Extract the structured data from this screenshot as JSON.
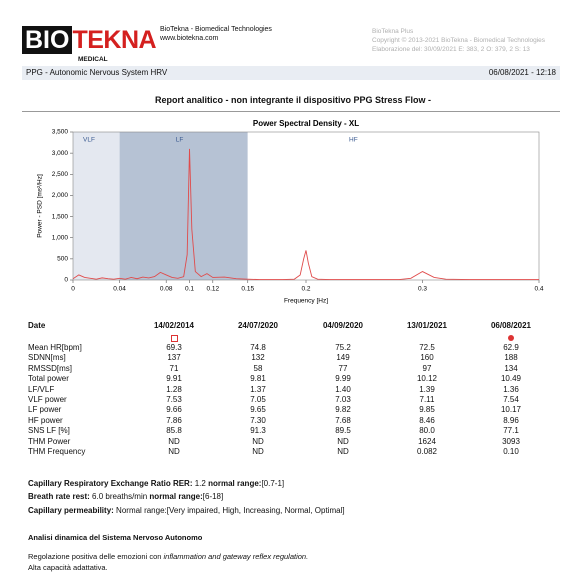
{
  "header": {
    "logo_left": "BIO",
    "logo_right": "TEKNA",
    "logo_sub": "MEDICAL",
    "company": "BioTekna - Biomedical Technologies",
    "website": "www.biotekna.com",
    "product": "BioTekna Plus",
    "copyright": "Copyright © 2013-2021 BioTekna - Biomedical Technologies",
    "elaboration": "Elaborazione del: 30/09/2021 E: 383, 2 O: 379, 2 S: 13"
  },
  "bar": {
    "left": "PPG - Autonomic Nervous System HRV",
    "right": "06/08/2021 - 12:18"
  },
  "report_title": "Report analitico - non integrante il dispositivo PPG Stress Flow -",
  "chart": {
    "type": "line",
    "title": "Power Spectral Density - XL",
    "x_label": "Frequency [Hz]",
    "y_label": "Power - PSD [ms²/Hz]",
    "color": "#e04b4b",
    "bands": [
      {
        "name": "VLF",
        "range": [
          0,
          0.04
        ],
        "color": "#e4e8f0"
      },
      {
        "name": "LF",
        "range": [
          0.04,
          0.15
        ],
        "color": "#b6c2d4"
      },
      {
        "name": "HF",
        "range": [
          0.15,
          0.4
        ],
        "color": "#ffffff"
      }
    ],
    "xlim": [
      0,
      0.4
    ],
    "ylim": [
      0,
      3500
    ],
    "xticks": [
      0,
      0.04,
      0.08,
      0.1,
      0.12,
      0.15,
      0.2,
      0.3,
      0.4
    ],
    "yticks": [
      0,
      500,
      {
        "value": 1000,
        "label": "1,000"
      },
      {
        "value": 1500,
        "label": "1,500"
      },
      {
        "value": 2000,
        "label": "2,000"
      },
      {
        "value": 2500,
        "label": "2,500"
      },
      {
        "value": 3000,
        "label": "3,000"
      },
      {
        "value": 3500,
        "label": "3,500"
      }
    ],
    "x": [
      0,
      0.005,
      0.01,
      0.015,
      0.02,
      0.025,
      0.03,
      0.035,
      0.04,
      0.045,
      0.05,
      0.055,
      0.06,
      0.065,
      0.07,
      0.075,
      0.08,
      0.085,
      0.09,
      0.095,
      0.098,
      0.1,
      0.102,
      0.105,
      0.11,
      0.115,
      0.12,
      0.13,
      0.14,
      0.15,
      0.16,
      0.17,
      0.18,
      0.19,
      0.195,
      0.198,
      0.2,
      0.202,
      0.205,
      0.21,
      0.22,
      0.24,
      0.26,
      0.28,
      0.29,
      0.3,
      0.31,
      0.32,
      0.34,
      0.36,
      0.38,
      0.4
    ],
    "values": [
      30,
      120,
      60,
      40,
      20,
      50,
      30,
      20,
      40,
      20,
      60,
      30,
      70,
      50,
      80,
      180,
      120,
      60,
      40,
      80,
      600,
      3100,
      1200,
      200,
      80,
      150,
      60,
      70,
      30,
      20,
      10,
      10,
      10,
      20,
      120,
      500,
      700,
      400,
      80,
      20,
      10,
      10,
      10,
      10,
      40,
      200,
      60,
      20,
      10,
      10,
      10,
      10
    ]
  },
  "table": {
    "header": [
      "Date",
      "14/02/2014",
      "24/07/2020",
      "04/09/2020",
      "13/01/2021",
      "06/08/2021"
    ],
    "rows": [
      [
        "Mean HR[bpm]",
        "69.3",
        "74.8",
        "75.2",
        "72.5",
        "62.9"
      ],
      [
        "SDNN[ms]",
        "137",
        "132",
        "149",
        "160",
        "188"
      ],
      [
        "RMSSD[ms]",
        "71",
        "58",
        "77",
        "97",
        "134"
      ],
      [
        "Total power",
        "9.91",
        "9.81",
        "9.99",
        "10.12",
        "10.49"
      ],
      [
        "LF/VLF",
        "1.28",
        "1.37",
        "1.40",
        "1.39",
        "1.36"
      ],
      [
        "VLF power",
        "7.53",
        "7.05",
        "7.03",
        "7.11",
        "7.54"
      ],
      [
        "LF power",
        "9.66",
        "9.65",
        "9.82",
        "9.85",
        "10.17"
      ],
      [
        "HF power",
        "7.86",
        "7.30",
        "7.68",
        "8.46",
        "8.96"
      ],
      [
        "SNS LF [%]",
        "85.8",
        "91.3",
        "89.5",
        "80.0",
        "77.1"
      ],
      [
        "THM Power",
        "ND",
        "ND",
        "ND",
        "1624",
        "3093"
      ],
      [
        "THM Frequency",
        "ND",
        "ND",
        "ND",
        "0.082",
        "0.10"
      ]
    ]
  },
  "notes": {
    "rer": {
      "label": "Capillary Respiratory Exchange Ratio RER:",
      "value": "1.2",
      "range_label": "normal range:",
      "range": "[0.7-1]"
    },
    "breath": {
      "label": "Breath rate rest:",
      "value": "6.0 breaths/min",
      "range_label": "normal range:",
      "range": "[6-18]"
    },
    "permeability": {
      "label": "Capillary permeability:",
      "value": "Normal",
      "range_label": "range:",
      "range": "[Very impaired, High, Increasing, Normal, Optimal]"
    }
  },
  "analysis": {
    "title": "Analisi dinamica del Sistema Nervoso Autonomo",
    "line1_start": "Regolazione positiva delle emozioni con",
    "line1_italic": "inflammation and gateway reflex regulation.",
    "line2": "Alta capacità adattativa."
  }
}
